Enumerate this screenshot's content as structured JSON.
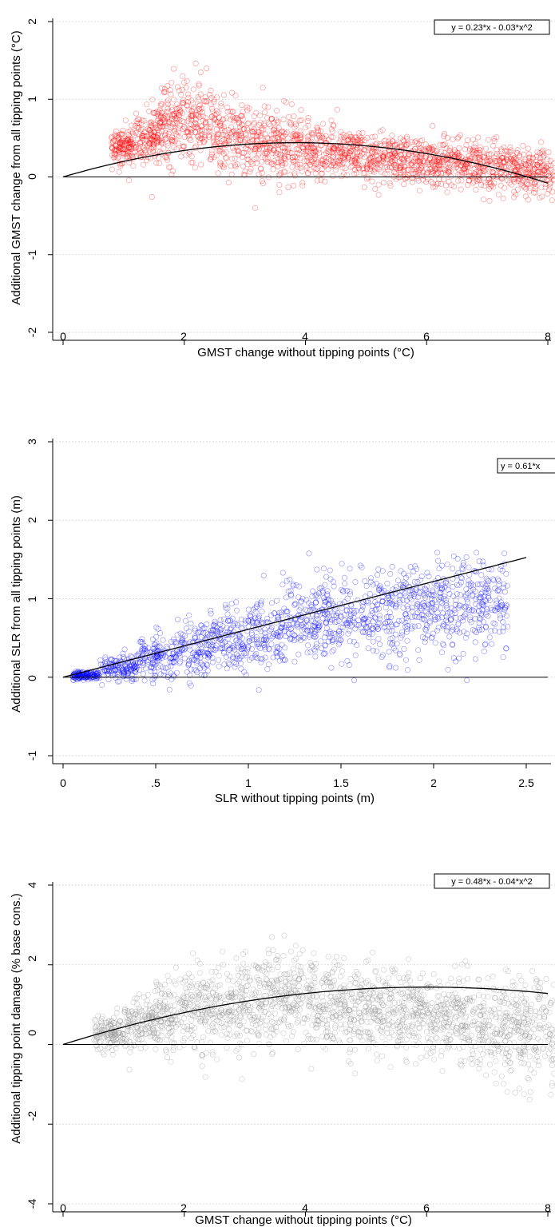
{
  "chart_data": [
    {
      "type": "scatter",
      "xlabel": "GMST change without tipping points (°C)",
      "ylabel": "Additional GMST change from all tipping points (°C)",
      "xlim": [
        0,
        8
      ],
      "ylim": [
        -2,
        2
      ],
      "xticks": [
        0,
        2,
        4,
        6,
        8
      ],
      "xtick_labels": [
        "0",
        "2",
        "4",
        "6",
        "8"
      ],
      "yticks": [
        -2,
        -1,
        0,
        1,
        2
      ],
      "ytick_labels": [
        "-2",
        "-1",
        "0",
        "1",
        "2"
      ],
      "grid": "horizontal dotted",
      "point_color": "#ff0000",
      "fit_equation": "y = 0.23*x - 0.03*x^2",
      "fit": {
        "type": "polynomial",
        "a": 0.23,
        "b": -0.03,
        "x_range": [
          0,
          8
        ]
      },
      "zero_line": true,
      "point_cloud": [
        {
          "x": 0.8,
          "y_center": 0.4,
          "y_spread": 0.2
        },
        {
          "x": 1.2,
          "y_center": 0.55,
          "y_spread": 0.35
        },
        {
          "x": 1.6,
          "y_center": 0.7,
          "y_spread": 0.45
        },
        {
          "x": 2.0,
          "y_center": 0.7,
          "y_spread": 0.5
        },
        {
          "x": 2.5,
          "y_center": 0.55,
          "y_spread": 0.45
        },
        {
          "x": 3.0,
          "y_center": 0.45,
          "y_spread": 0.4
        },
        {
          "x": 3.5,
          "y_center": 0.38,
          "y_spread": 0.35
        },
        {
          "x": 4.0,
          "y_center": 0.33,
          "y_spread": 0.32
        },
        {
          "x": 4.5,
          "y_center": 0.3,
          "y_spread": 0.3
        },
        {
          "x": 5.0,
          "y_center": 0.25,
          "y_spread": 0.28
        },
        {
          "x": 5.5,
          "y_center": 0.22,
          "y_spread": 0.27
        },
        {
          "x": 6.0,
          "y_center": 0.2,
          "y_spread": 0.26
        },
        {
          "x": 6.5,
          "y_center": 0.17,
          "y_spread": 0.26
        },
        {
          "x": 7.0,
          "y_center": 0.12,
          "y_spread": 0.27
        },
        {
          "x": 7.5,
          "y_center": 0.08,
          "y_spread": 0.28
        },
        {
          "x": 8.0,
          "y_center": 0.02,
          "y_spread": 0.3
        }
      ]
    },
    {
      "type": "scatter",
      "xlabel": "SLR without tipping points (m)",
      "ylabel": "Additional SLR from all tipping points (m)",
      "xlim": [
        0,
        2.6
      ],
      "ylim": [
        -1,
        3
      ],
      "xticks": [
        0,
        0.5,
        1,
        1.5,
        2,
        2.5
      ],
      "xtick_labels": [
        "0",
        ".5",
        "1",
        "1.5",
        "2",
        "2.5"
      ],
      "yticks": [
        -1,
        0,
        1,
        2,
        3
      ],
      "ytick_labels": [
        "-1",
        "0",
        "1",
        "2",
        "3"
      ],
      "grid": "horizontal dotted",
      "point_color": "#0000ff",
      "fit_equation": "y = 0.61*x",
      "fit": {
        "type": "polynomial",
        "a": 0.61,
        "b": 0,
        "x_range": [
          0,
          2.5
        ]
      },
      "zero_line": true,
      "point_cloud": [
        {
          "x": 0.05,
          "y_center": 0.02,
          "y_spread": 0.05
        },
        {
          "x": 0.2,
          "y_center": 0.12,
          "y_spread": 0.15
        },
        {
          "x": 0.4,
          "y_center": 0.24,
          "y_spread": 0.25
        },
        {
          "x": 0.6,
          "y_center": 0.36,
          "y_spread": 0.32
        },
        {
          "x": 0.8,
          "y_center": 0.48,
          "y_spread": 0.38
        },
        {
          "x": 1.0,
          "y_center": 0.58,
          "y_spread": 0.42
        },
        {
          "x": 1.2,
          "y_center": 0.68,
          "y_spread": 0.45
        },
        {
          "x": 1.4,
          "y_center": 0.76,
          "y_spread": 0.48
        },
        {
          "x": 1.6,
          "y_center": 0.82,
          "y_spread": 0.5
        },
        {
          "x": 1.8,
          "y_center": 0.88,
          "y_spread": 0.52
        },
        {
          "x": 2.0,
          "y_center": 0.9,
          "y_spread": 0.55
        },
        {
          "x": 2.2,
          "y_center": 0.92,
          "y_spread": 0.5
        }
      ]
    },
    {
      "type": "scatter",
      "xlabel": "GMST change without tipping points (°C)",
      "ylabel": "Additional tipping point damage (% base cons.)",
      "xlim": [
        0,
        8
      ],
      "ylim": [
        -4,
        4
      ],
      "xticks": [
        0,
        2,
        4,
        6,
        8
      ],
      "xtick_labels": [
        "0",
        "2",
        "4",
        "6",
        "8"
      ],
      "yticks": [
        -4,
        -2,
        0,
        2,
        4
      ],
      "ytick_labels": [
        "-4",
        "-2",
        "0",
        "2",
        "4"
      ],
      "grid": "horizontal dotted",
      "point_color": "#909090",
      "fit_equation": "y = 0.48*x - 0.04*x^2",
      "fit": {
        "type": "polynomial",
        "a": 0.48,
        "b": -0.04,
        "x_range": [
          0,
          8
        ]
      },
      "zero_line": true,
      "point_cloud": [
        {
          "x": 0.5,
          "y_center": 0.25,
          "y_spread": 0.4
        },
        {
          "x": 1.0,
          "y_center": 0.5,
          "y_spread": 0.6
        },
        {
          "x": 1.5,
          "y_center": 0.7,
          "y_spread": 0.8
        },
        {
          "x": 2.0,
          "y_center": 0.9,
          "y_spread": 0.95
        },
        {
          "x": 2.5,
          "y_center": 1.0,
          "y_spread": 1.05
        },
        {
          "x": 3.0,
          "y_center": 1.1,
          "y_spread": 1.1
        },
        {
          "x": 3.5,
          "y_center": 1.1,
          "y_spread": 1.1
        },
        {
          "x": 4.0,
          "y_center": 1.0,
          "y_spread": 1.0
        },
        {
          "x": 4.5,
          "y_center": 0.9,
          "y_spread": 0.95
        },
        {
          "x": 5.0,
          "y_center": 0.85,
          "y_spread": 0.9
        },
        {
          "x": 5.5,
          "y_center": 0.8,
          "y_spread": 0.9
        },
        {
          "x": 6.0,
          "y_center": 0.7,
          "y_spread": 0.95
        },
        {
          "x": 6.5,
          "y_center": 0.6,
          "y_spread": 1.0
        },
        {
          "x": 7.0,
          "y_center": 0.5,
          "y_spread": 1.05
        },
        {
          "x": 7.5,
          "y_center": 0.4,
          "y_spread": 1.1
        },
        {
          "x": 8.0,
          "y_center": 0.3,
          "y_spread": 1.15
        }
      ]
    }
  ]
}
